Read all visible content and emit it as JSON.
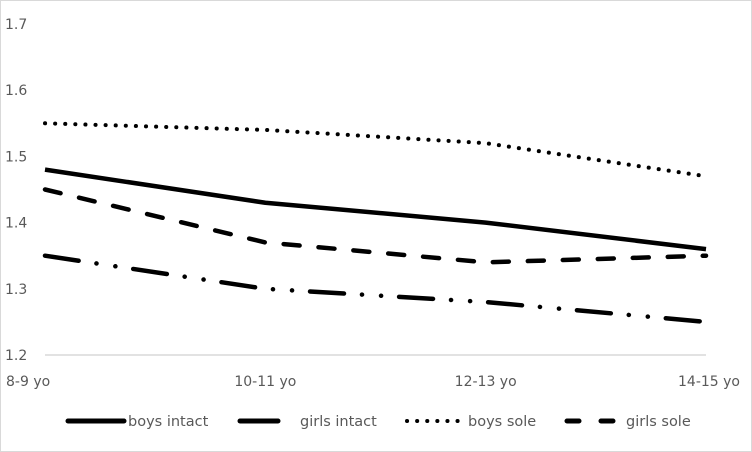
{
  "chart_data": {
    "type": "line",
    "title": "",
    "xlabel": "",
    "ylabel": "",
    "categories": [
      "8-9 yo",
      "10-11 yo",
      "12-13 yo",
      "14-15 yo"
    ],
    "ylim": [
      1.2,
      1.7
    ],
    "yticks": [
      "1.2",
      "1.3",
      "1.4",
      "1.5",
      "1.6",
      "1.7"
    ],
    "grid": false,
    "legend_position": "bottom",
    "series": [
      {
        "name": "boys intact",
        "style": "solid",
        "values": [
          1.48,
          1.43,
          1.4,
          1.36
        ]
      },
      {
        "name": "girls intact",
        "style": "long-dash-dot-dot",
        "values": [
          1.35,
          1.3,
          1.28,
          1.25
        ]
      },
      {
        "name": "boys sole",
        "style": "dotted",
        "values": [
          1.55,
          1.54,
          1.52,
          1.47
        ]
      },
      {
        "name": "girls sole",
        "style": "dashed",
        "values": [
          1.45,
          1.37,
          1.34,
          1.35
        ]
      }
    ]
  },
  "colors": {
    "line": "#000000",
    "axis_text": "#595959",
    "axis_line": "#d9d9d9"
  }
}
